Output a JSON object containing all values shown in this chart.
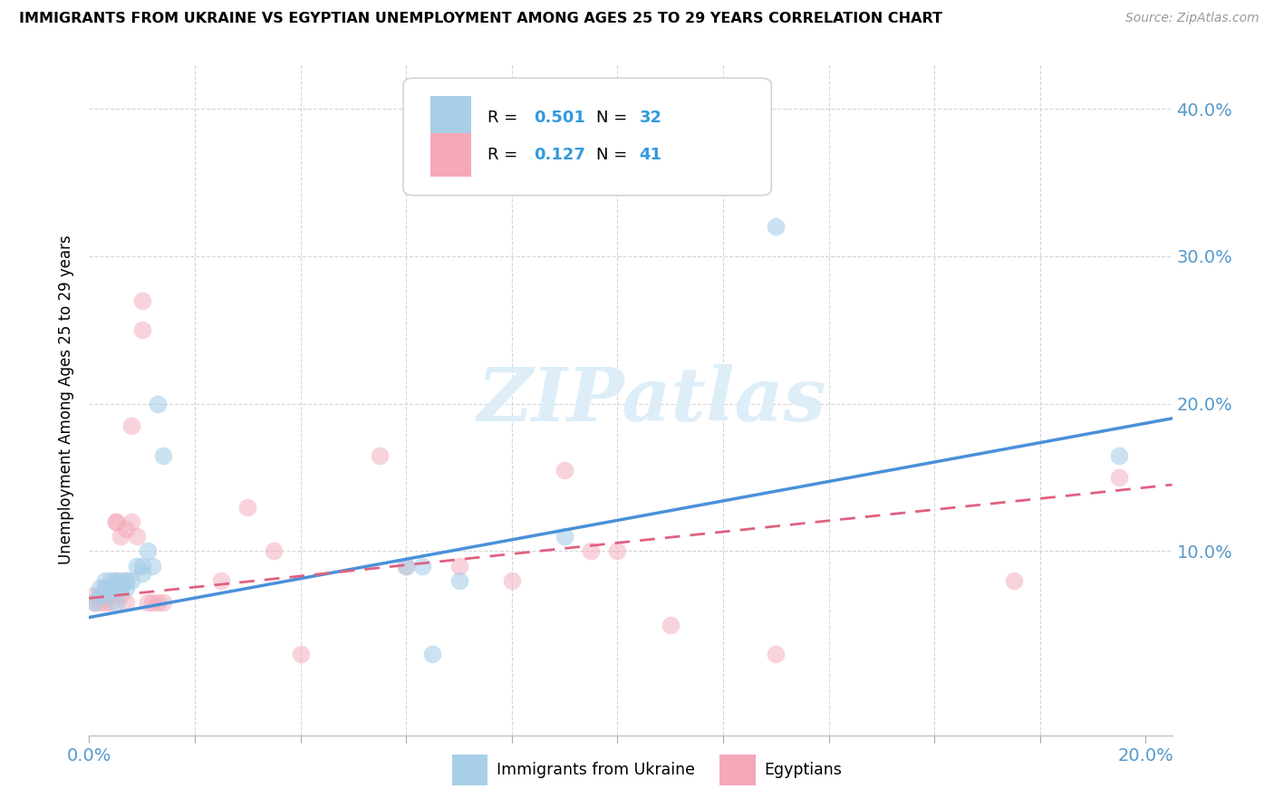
{
  "title": "IMMIGRANTS FROM UKRAINE VS EGYPTIAN UNEMPLOYMENT AMONG AGES 25 TO 29 YEARS CORRELATION CHART",
  "source": "Source: ZipAtlas.com",
  "ylabel": "Unemployment Among Ages 25 to 29 years",
  "xlim": [
    0.0,
    0.205
  ],
  "ylim": [
    -0.025,
    0.43
  ],
  "yticks": [
    0.0,
    0.1,
    0.2,
    0.3,
    0.4
  ],
  "ytick_labels_right": [
    "",
    "10.0%",
    "20.0%",
    "30.0%",
    "40.0%"
  ],
  "xtick_positions": [
    0.0,
    0.02,
    0.04,
    0.06,
    0.08,
    0.1,
    0.12,
    0.14,
    0.16,
    0.18,
    0.2
  ],
  "color_ukraine": "#a8cfe8",
  "color_egypt": "#f4a8b8",
  "color_line_ukraine": "#4a90d9",
  "color_line_egypt": "#e06080",
  "watermark_color": "#ddeef8",
  "ukraine_x": [
    0.001,
    0.002,
    0.002,
    0.003,
    0.003,
    0.003,
    0.004,
    0.004,
    0.004,
    0.005,
    0.005,
    0.005,
    0.006,
    0.006,
    0.007,
    0.007,
    0.007,
    0.008,
    0.009,
    0.01,
    0.01,
    0.011,
    0.012,
    0.013,
    0.014,
    0.06,
    0.063,
    0.065,
    0.07,
    0.09,
    0.13,
    0.195
  ],
  "ukraine_y": [
    0.065,
    0.07,
    0.075,
    0.07,
    0.075,
    0.08,
    0.075,
    0.08,
    0.075,
    0.075,
    0.08,
    0.065,
    0.08,
    0.075,
    0.08,
    0.075,
    0.08,
    0.08,
    0.09,
    0.085,
    0.09,
    0.1,
    0.09,
    0.2,
    0.165,
    0.09,
    0.09,
    0.03,
    0.08,
    0.11,
    0.32,
    0.165
  ],
  "egypt_x": [
    0.001,
    0.001,
    0.002,
    0.002,
    0.003,
    0.003,
    0.003,
    0.004,
    0.004,
    0.004,
    0.005,
    0.005,
    0.005,
    0.006,
    0.006,
    0.007,
    0.007,
    0.008,
    0.008,
    0.009,
    0.01,
    0.01,
    0.011,
    0.012,
    0.013,
    0.014,
    0.025,
    0.03,
    0.035,
    0.04,
    0.055,
    0.06,
    0.07,
    0.08,
    0.09,
    0.095,
    0.1,
    0.11,
    0.13,
    0.175,
    0.195
  ],
  "egypt_y": [
    0.07,
    0.065,
    0.07,
    0.065,
    0.065,
    0.07,
    0.075,
    0.07,
    0.075,
    0.065,
    0.08,
    0.12,
    0.12,
    0.07,
    0.11,
    0.115,
    0.065,
    0.185,
    0.12,
    0.11,
    0.25,
    0.27,
    0.065,
    0.065,
    0.065,
    0.065,
    0.08,
    0.13,
    0.1,
    0.03,
    0.165,
    0.09,
    0.09,
    0.08,
    0.155,
    0.1,
    0.1,
    0.05,
    0.03,
    0.08,
    0.15
  ],
  "background_color": "#ffffff",
  "grid_color": "#cccccc",
  "line_ukraine_start_y": 0.055,
  "line_ukraine_end_y": 0.19,
  "line_egypt_start_y": 0.068,
  "line_egypt_end_y": 0.145
}
